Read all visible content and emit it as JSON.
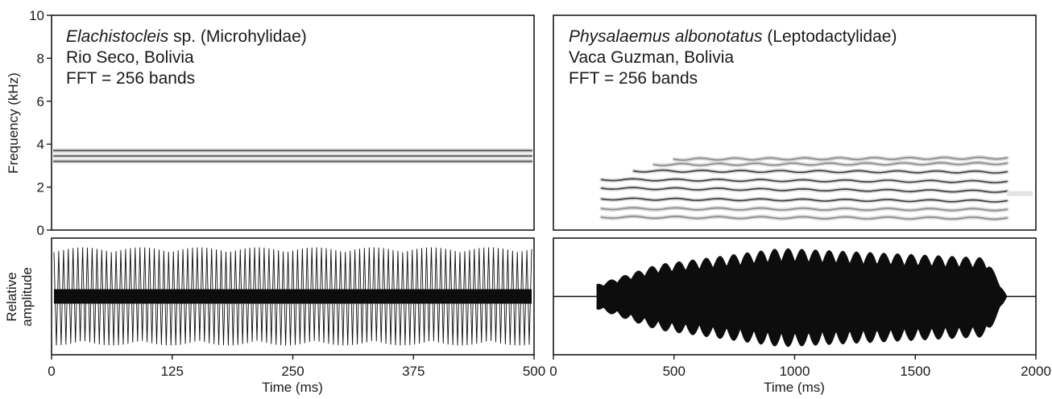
{
  "chart_data": [
    {
      "type": "spectrogram",
      "panel": "left-top",
      "annotation": {
        "species_italic": "Elachistocleis",
        "species_rest": " sp. (Microhylidae)",
        "locality": "Rio Seco, Bolivia",
        "fft": "FFT = 256 bands"
      },
      "ylabel": "Frequency (kHz)",
      "ylim": [
        0,
        10
      ],
      "yticks": [
        "0",
        "2",
        "4",
        "6",
        "8",
        "10"
      ],
      "xlim": [
        0,
        500
      ],
      "bands_khz": [
        3.2,
        3.45,
        3.7
      ],
      "band_start_ms": 0,
      "band_end_ms": 500
    },
    {
      "type": "spectrogram",
      "panel": "right-top",
      "annotation": {
        "species_italic": "Physalaemus albonotatus",
        "species_rest": " (Leptodactylidae)",
        "locality": "Vaca Guzman, Bolivia",
        "fft": "FFT = 256 bands"
      },
      "ylim": [
        0,
        10
      ],
      "xlim": [
        0,
        2000
      ],
      "harmonics_khz": [
        {
          "start": 0.6,
          "end": 0.55
        },
        {
          "start": 1.0,
          "end": 0.95
        },
        {
          "start": 1.45,
          "end": 1.35
        },
        {
          "start": 1.95,
          "end": 1.8
        },
        {
          "start": 2.35,
          "end": 2.25
        },
        {
          "start": 2.75,
          "end": 2.7
        },
        {
          "start": 3.05,
          "end": 3.1
        },
        {
          "start": 3.3,
          "end": 3.35
        }
      ],
      "call_start_ms": 200,
      "call_end_ms": 1880
    },
    {
      "type": "waveform",
      "panel": "left-bottom",
      "ylabel_line1": "Relative",
      "ylabel_line2": "amplitude",
      "xlabel": "Time (ms)",
      "xlim": [
        0,
        500
      ],
      "xticks": [
        "0",
        "125",
        "250",
        "375",
        "500"
      ],
      "pulses": 100,
      "envelope": "constant"
    },
    {
      "type": "waveform",
      "panel": "right-bottom",
      "xlabel": "Time (ms)",
      "xlim": [
        0,
        2000
      ],
      "xticks": [
        "0",
        "500",
        "1000",
        "1500",
        "2000"
      ],
      "call_start_ms": 180,
      "call_end_ms": 1880,
      "pulses": 30,
      "envelope": "rising-plateau-decay"
    }
  ]
}
